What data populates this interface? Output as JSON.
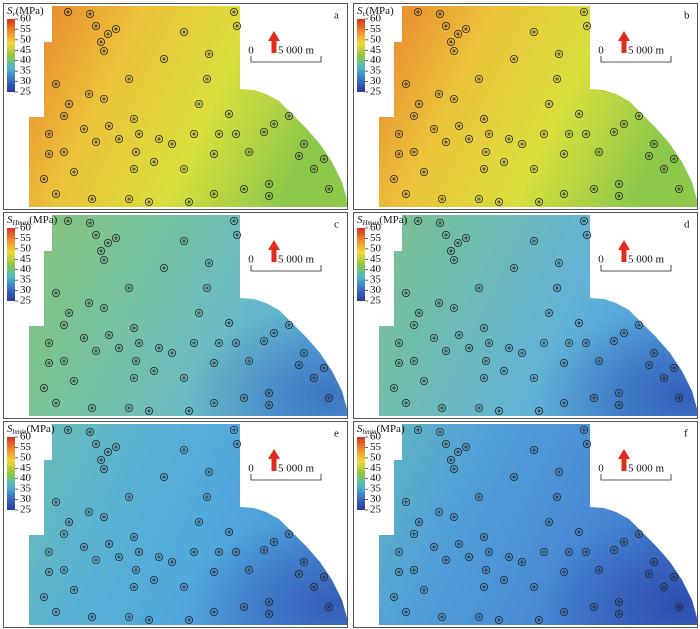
{
  "colorbar_colors": [
    "#d7301f",
    "#f08a2c",
    "#f2d63a",
    "#8ec641",
    "#4fb9c9",
    "#3a6fc4",
    "#2b3a9a"
  ],
  "panels": [
    {
      "label": "a",
      "title": {
        "symbol": "S",
        "subscript": "v",
        "unit": "(MPa)"
      },
      "colorbar": {
        "range": [
          25,
          60
        ],
        "ticks": [
          60,
          55,
          50,
          45,
          40,
          35,
          30,
          25
        ]
      },
      "scale_bar": {
        "start": "0",
        "end": "5 000 m"
      }
    },
    {
      "label": "b",
      "title": {
        "symbol": "S",
        "subscript": "v",
        "unit": "(MPa)"
      },
      "colorbar": {
        "range": [
          25,
          60
        ],
        "ticks": [
          60,
          55,
          50,
          45,
          40,
          35,
          30,
          25
        ]
      },
      "scale_bar": {
        "start": "0",
        "end": "5 000 m"
      }
    },
    {
      "label": "c",
      "title": {
        "symbol": "S",
        "subscript": "Hmax",
        "unit": "(MPa)"
      },
      "colorbar": {
        "range": [
          25,
          60
        ],
        "ticks": [
          60,
          55,
          50,
          45,
          40,
          35,
          30,
          25
        ]
      },
      "scale_bar": {
        "start": "0",
        "end": "5 000 m"
      }
    },
    {
      "label": "d",
      "title": {
        "symbol": "S",
        "subscript": "Hmax",
        "unit": "(MPa)"
      },
      "colorbar": {
        "range": [
          25,
          60
        ],
        "ticks": [
          60,
          55,
          50,
          45,
          40,
          35,
          30,
          25
        ]
      },
      "scale_bar": {
        "start": "0",
        "end": "5 000 m"
      }
    },
    {
      "label": "e",
      "title": {
        "symbol": "S",
        "subscript": "hmin",
        "unit": "(MPa)"
      },
      "colorbar": {
        "range": [
          25,
          60
        ],
        "ticks": [
          60,
          55,
          50,
          45,
          40,
          35,
          30,
          25
        ]
      },
      "scale_bar": {
        "start": "0",
        "end": "5 000 m"
      }
    },
    {
      "label": "f",
      "title": {
        "symbol": "S",
        "subscript": "hmin",
        "unit": "(MPa)"
      },
      "colorbar": {
        "range": [
          25,
          60
        ],
        "ticks": [
          60,
          55,
          50,
          45,
          40,
          35,
          30,
          25
        ]
      },
      "scale_bar": {
        "start": "0",
        "end": "5 000 m"
      }
    }
  ]
}
